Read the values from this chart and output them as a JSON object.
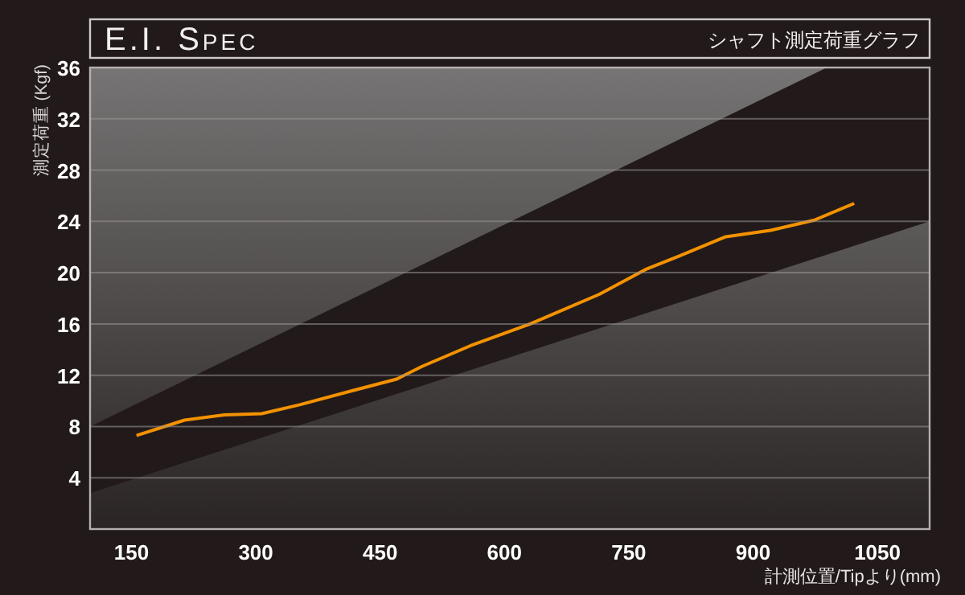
{
  "chart_data": {
    "type": "line",
    "title": "E.I. Spec",
    "subtitle": "シャフト測定荷重グラフ",
    "xlabel": "計測位置/Tipより(mm)",
    "ylabel": "測定荷重 (Kgf)",
    "xlim": [
      100,
      1113
    ],
    "xticks": [
      150,
      300,
      450,
      600,
      750,
      900,
      1050
    ],
    "ylim": [
      0,
      36
    ],
    "yticks": [
      4,
      8,
      12,
      16,
      20,
      24,
      28,
      32,
      36
    ],
    "grid": "y",
    "line_style": "solid",
    "marker": "none",
    "series": [
      {
        "type": "area",
        "color": "#221a1a",
        "x": [
          100,
          989,
          1113
        ],
        "values": [
          null,
          null,
          null
        ],
        "lower": [
          2.8,
          21.4,
          24
        ],
        "upper": [
          8,
          36,
          36
        ]
      },
      {
        "color": "#f39200",
        "x": [
          156,
          214,
          262,
          307,
          353,
          417,
          470,
          501,
          559,
          631,
          714,
          772,
          811,
          867,
          921,
          974,
          1022
        ],
        "values": [
          7.3,
          8.5,
          8.9,
          9.0,
          9.7,
          10.8,
          11.7,
          12.7,
          14.3,
          16.0,
          18.3,
          20.3,
          21.3,
          22.8,
          23.3,
          24.1,
          25.4
        ]
      }
    ]
  }
}
